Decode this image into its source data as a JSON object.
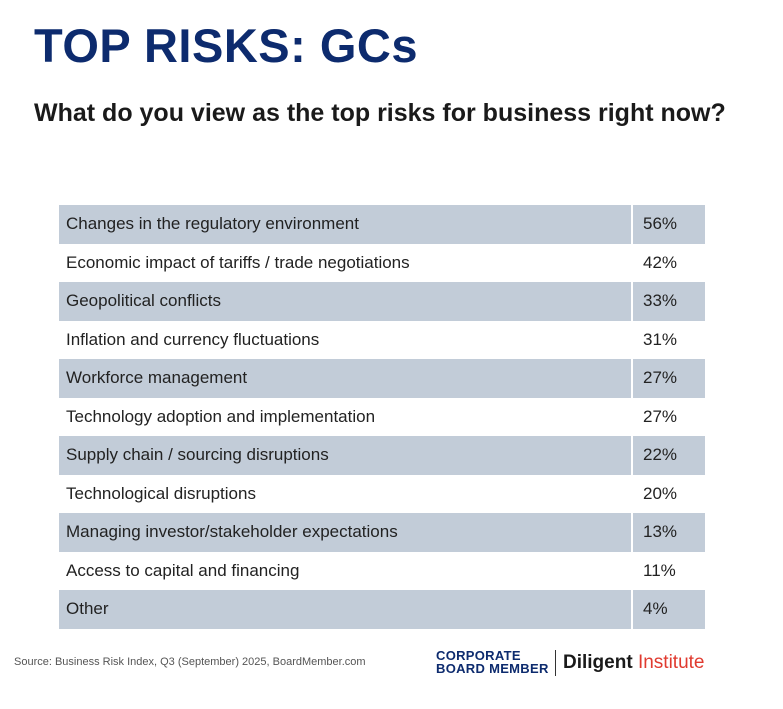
{
  "header": {
    "title": "TOP RISKS: GCs",
    "subtitle": "What do you view as the top risks for business right now?"
  },
  "chart_data": {
    "type": "table",
    "title": "TOP RISKS: GCs",
    "subtitle": "What do you view as the top risks for business right now?",
    "rows": [
      {
        "label": "Changes in the regulatory environment",
        "value": "56%"
      },
      {
        "label": "Economic impact of tariffs / trade negotiations",
        "value": "42%"
      },
      {
        "label": "Geopolitical conflicts",
        "value": "33%"
      },
      {
        "label": "Inflation and currency fluctuations",
        "value": "31%"
      },
      {
        "label": "Workforce management",
        "value": "27%"
      },
      {
        "label": "Technology adoption and implementation",
        "value": "27%"
      },
      {
        "label": "Supply chain / sourcing disruptions",
        "value": "22%"
      },
      {
        "label": "Technological disruptions",
        "value": "20%"
      },
      {
        "label": "Managing investor/stakeholder expectations",
        "value": "13%"
      },
      {
        "label": "Access to capital and financing",
        "value": "11%"
      },
      {
        "label": "Other",
        "value": "4%"
      }
    ],
    "colors": {
      "shaded_row": "#c2ccd8",
      "title": "#0d2b6e"
    }
  },
  "footer": {
    "source": "Source: Business Risk Index, Q3 (September) 2025, BoardMember.com",
    "logo_cbm_line1": "CORPORATE",
    "logo_cbm_line2": "BOARD MEMBER",
    "logo_diligent": "Diligent",
    "logo_institute": "Institute"
  }
}
